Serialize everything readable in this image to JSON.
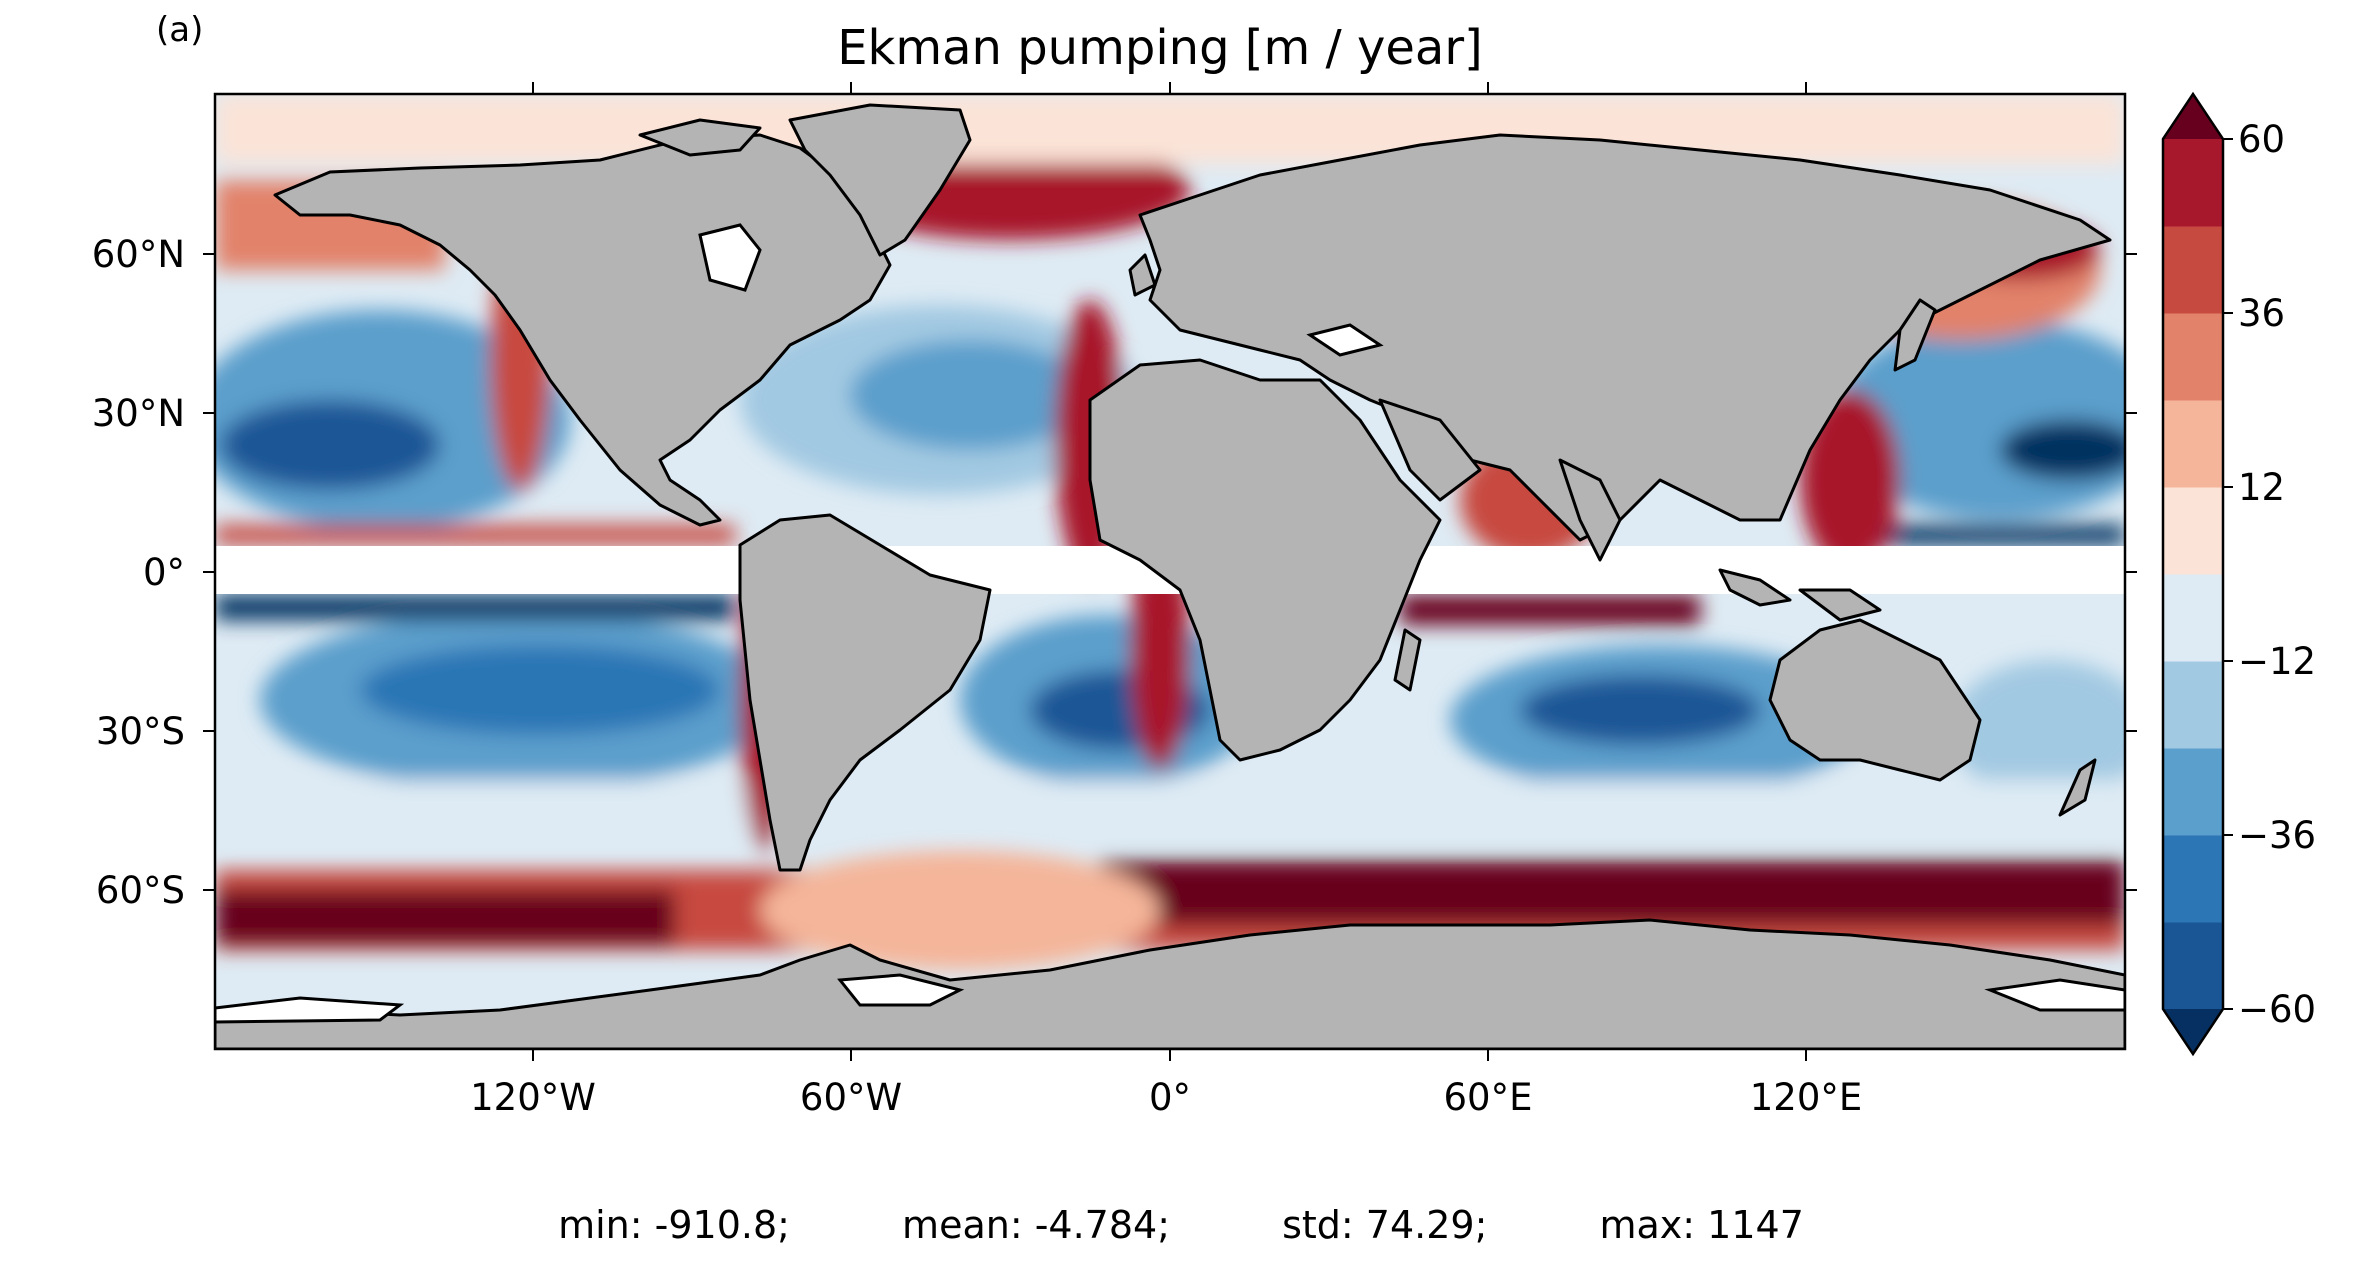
{
  "panel_label": "(a)",
  "title": "Ekman pumping [m / year]",
  "axes": {
    "lat_ticks": [
      "60°N",
      "30°N",
      "0°",
      "30°S",
      "60°S"
    ],
    "lon_ticks": [
      "120°W",
      "60°W",
      "0°",
      "60°E",
      "120°E"
    ]
  },
  "colorbar": {
    "tick_labels": [
      "60",
      "36",
      "12",
      "−12",
      "−36",
      "−60"
    ],
    "levels": [
      -60,
      -48,
      -36,
      -24,
      -12,
      0,
      12,
      24,
      36,
      48,
      60
    ],
    "extend": "both",
    "colors": [
      "#1a5696",
      "#2c76b5",
      "#5b9fcc",
      "#a2c9e2",
      "#deebf4",
      "#fbe3d7",
      "#f4b59a",
      "#e2826a",
      "#c74a41",
      "#a8182c"
    ],
    "under_color": "#053061",
    "over_color": "#67001f"
  },
  "colors": {
    "land": "#b4b4b4",
    "ice": "#ffffff",
    "coast": "#000000"
  },
  "stats": {
    "min": "min: -910.8;",
    "mean": "mean: -4.784;",
    "std": "std: 74.29;",
    "max": "max: 1147"
  }
}
